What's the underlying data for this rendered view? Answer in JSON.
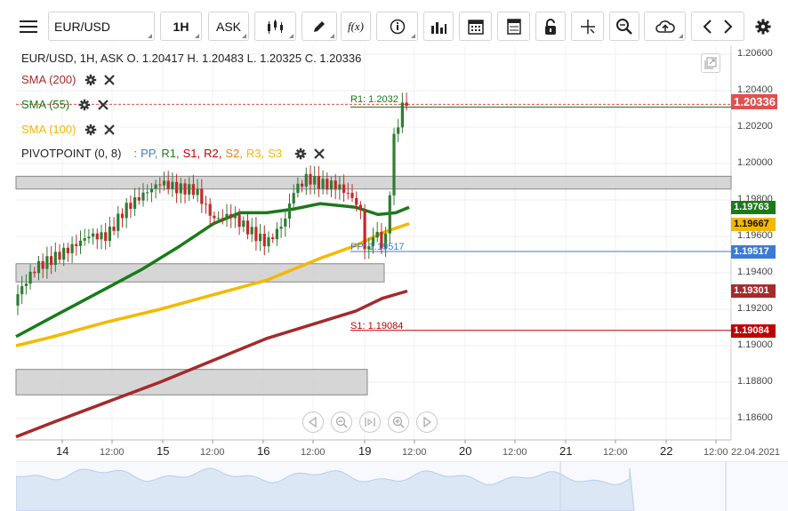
{
  "toolbar": {
    "symbol": "EUR/USD",
    "timeframe": "1H",
    "price_type": "ASK",
    "icons": [
      "menu-icon",
      "candles-icon",
      "pencil-icon",
      "function-icon",
      "info-icon",
      "bar-chart-icon",
      "calendar-icon",
      "spreadsheet-icon",
      "lock-icon",
      "crosshair-icon",
      "zoom-icon",
      "cloud-upload-icon",
      "chevron-left-icon",
      "chevron-right-icon",
      "gear-icon"
    ],
    "fx_label": "f(x)"
  },
  "legend": {
    "ohlc": "EUR/USD, 1H, ASK   O. 1.20417 H. 1.20483 L. 1.20325 C. 1.20336",
    "indicators": [
      {
        "label": "SMA (200)",
        "color": "#a52a2a"
      },
      {
        "label": "SMA (55)",
        "color": "#1a7a1a"
      },
      {
        "label": "SMA (100)",
        "color": "#f5b800"
      }
    ],
    "pivot_label": "PIVOTPOINT (0, 8)",
    "pivot_sep": ":",
    "pivot_parts": [
      {
        "t": "PP,",
        "c": "#3a7bd5"
      },
      {
        "t": "R1,",
        "c": "#1a7a1a"
      },
      {
        "t": "S1,",
        "c": "#c00000"
      },
      {
        "t": "R2,",
        "c": "#c00000"
      },
      {
        "t": "S2,",
        "c": "#f08000"
      },
      {
        "t": "R3,",
        "c": "#f5b800"
      },
      {
        "t": "S3",
        "c": "#f5b800"
      }
    ]
  },
  "price_axis": {
    "ticks": [
      "1.20600",
      "1.20400",
      "1.20200",
      "1.20000",
      "1.19800",
      "1.19600",
      "1.19400",
      "1.19200",
      "1.19000",
      "1.18800",
      "1.18600"
    ],
    "tags": [
      {
        "value": "1.20336",
        "color": "#e05050",
        "text_color": "#ffffff"
      },
      {
        "value": "1.19763",
        "color": "#1a7a1a",
        "text_color": "#ffffff"
      },
      {
        "value": "1.19667",
        "color": "#f5b800",
        "text_color": "#111111"
      },
      {
        "value": "1.19517",
        "color": "#3a7bd5",
        "text_color": "#ffffff"
      },
      {
        "value": "1.19301",
        "color": "#a52a2a",
        "text_color": "#ffffff"
      },
      {
        "value": "1.19084",
        "color": "#c00000",
        "text_color": "#ffffff"
      }
    ]
  },
  "date_axis": {
    "ticks": [
      {
        "label": "14",
        "major": true
      },
      {
        "label": "12:00",
        "major": false
      },
      {
        "label": "15",
        "major": true
      },
      {
        "label": "12:00",
        "major": false
      },
      {
        "label": "16",
        "major": true
      },
      {
        "label": "12:00",
        "major": false
      },
      {
        "label": "19",
        "major": true
      },
      {
        "label": "12:00",
        "major": false
      },
      {
        "label": "20",
        "major": true
      },
      {
        "label": "12:00",
        "major": false
      },
      {
        "label": "21",
        "major": true
      },
      {
        "label": "12:00",
        "major": false
      },
      {
        "label": "22",
        "major": true
      },
      {
        "label": "12:00",
        "major": false
      }
    ],
    "current_date": "22.04.2021"
  },
  "levels": {
    "r1": "R1: 1.2032",
    "pp": "PP: 1.19517",
    "s1": "S1: 1.19084"
  },
  "chart_data": {
    "type": "candlestick",
    "symbol": "EUR/USD",
    "timeframe": "1H",
    "ylim": [
      1.1845,
      1.2065
    ],
    "last": {
      "open": 1.20417,
      "high": 1.20483,
      "low": 1.20325,
      "close": 1.20336
    },
    "series": [
      {
        "name": "SMA (200)",
        "last": 1.19301
      },
      {
        "name": "SMA (55)",
        "last": 1.19763
      },
      {
        "name": "SMA (100)",
        "last": 1.19667
      }
    ],
    "pivots": {
      "R1": 1.2032,
      "PP": 1.19517,
      "S1": 1.19084
    }
  }
}
